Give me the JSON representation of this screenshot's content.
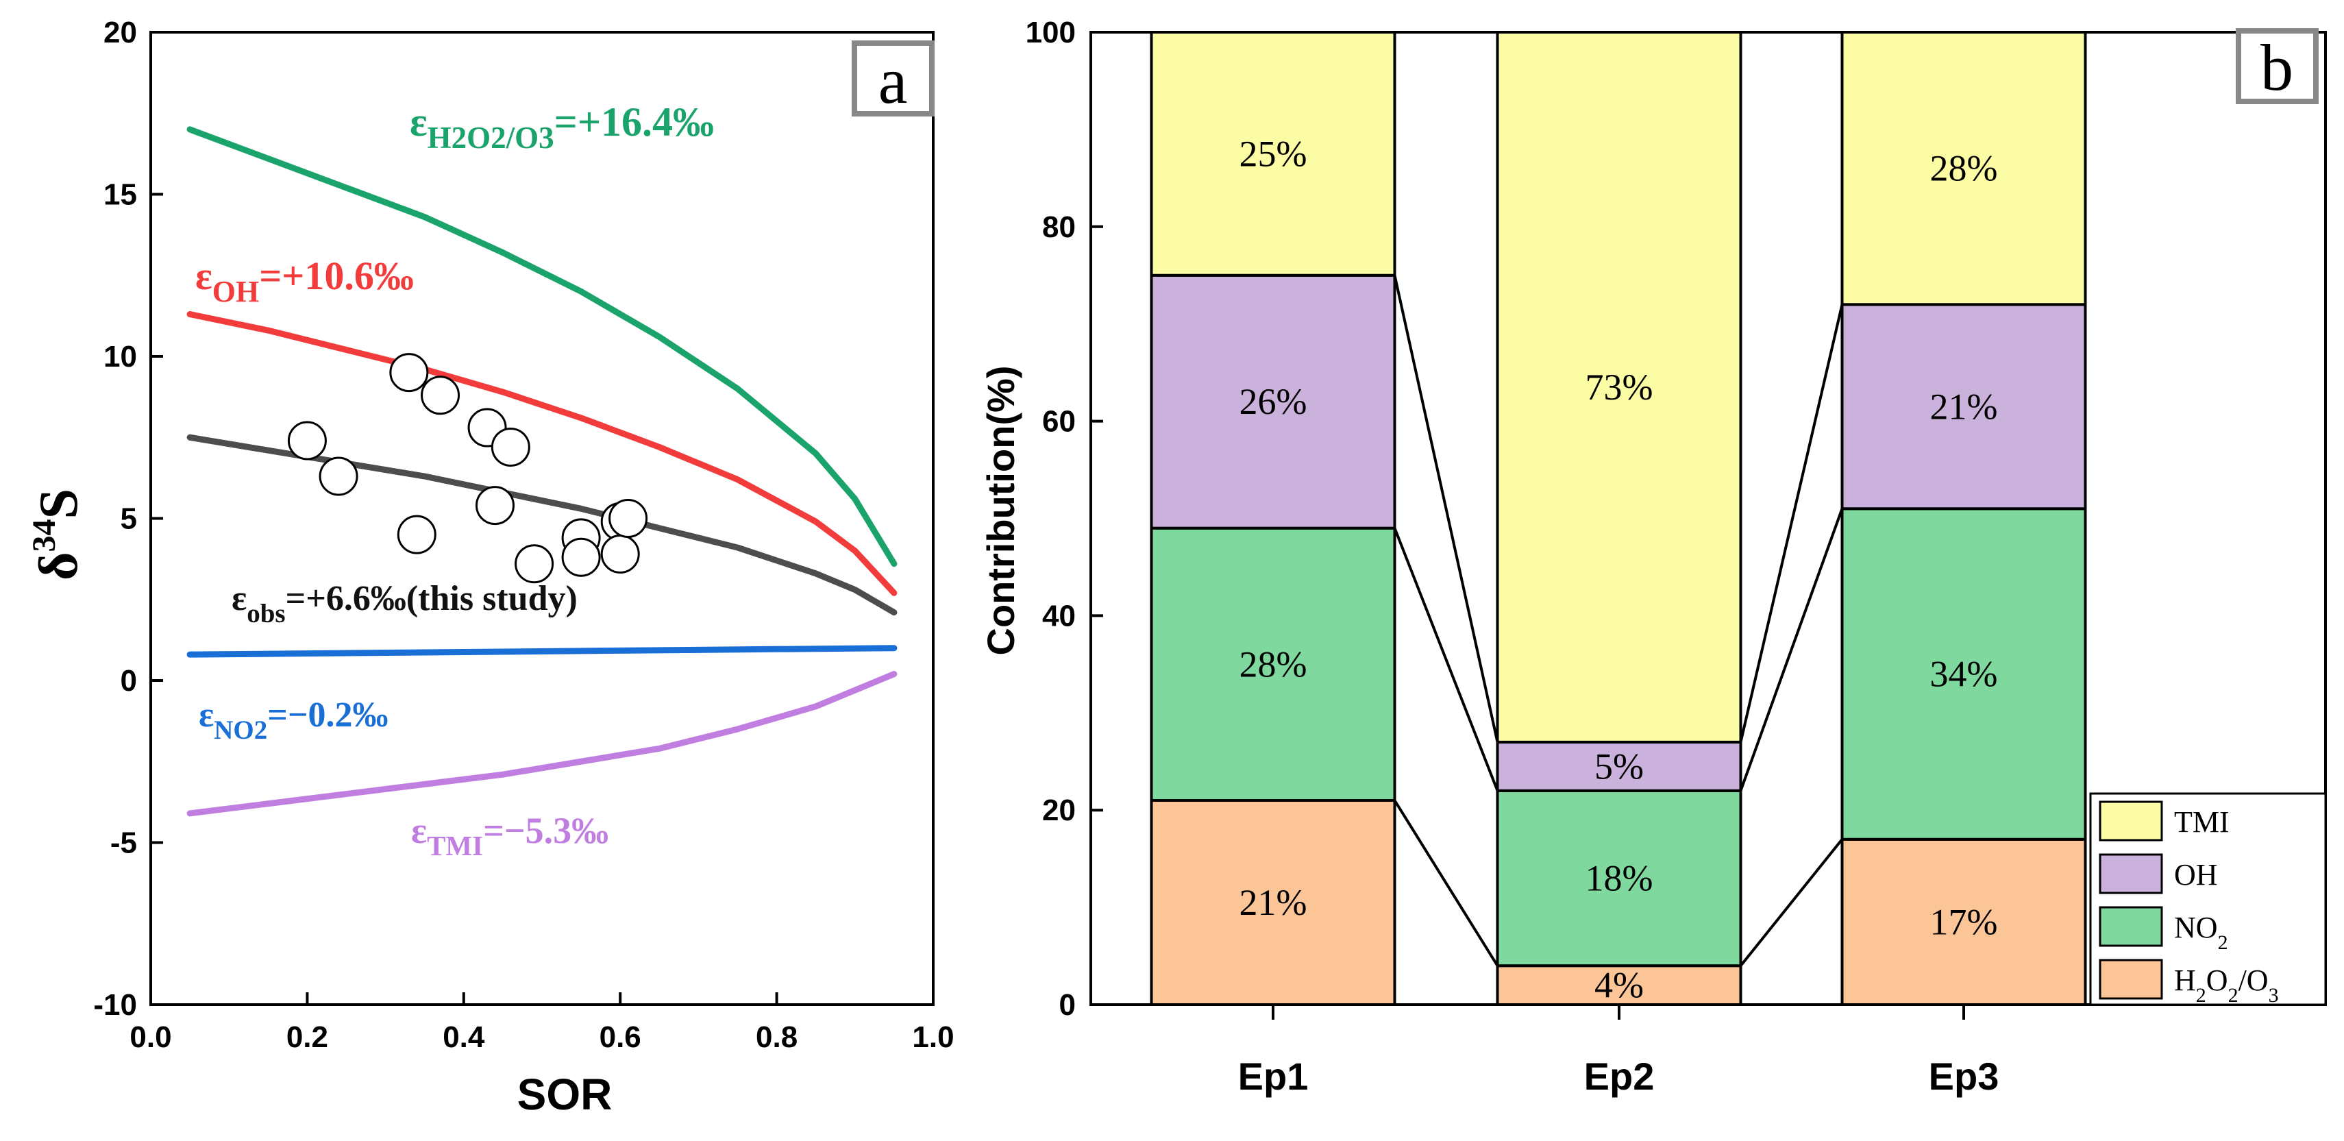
{
  "chart_data": [
    {
      "type": "line",
      "panel": "a",
      "panel_letter": "a",
      "xlabel": "SOR",
      "ylabel": "δ",
      "ylabel_sup": "34",
      "ylabel_tail": "S",
      "xlim": [
        0.0,
        1.0
      ],
      "ylim": [
        -10,
        20
      ],
      "xticks": [
        "0.0",
        "0.2",
        "0.4",
        "0.6",
        "0.8",
        "1.0"
      ],
      "xtick_values": [
        0.0,
        0.2,
        0.4,
        0.6,
        0.8,
        1.0
      ],
      "yticks": [
        "-10",
        "-5",
        "0",
        "5",
        "10",
        "15",
        "20"
      ],
      "ytick_values": [
        -10,
        -5,
        0,
        5,
        10,
        15,
        20
      ],
      "series": [
        {
          "name": "H2O2/O3",
          "color": "#1aa36b",
          "x": [
            0.05,
            0.15,
            0.25,
            0.35,
            0.45,
            0.55,
            0.65,
            0.75,
            0.85,
            0.9,
            0.95
          ],
          "y": [
            17.0,
            16.1,
            15.2,
            14.3,
            13.2,
            12.0,
            10.6,
            9.0,
            7.0,
            5.6,
            3.6
          ],
          "label_main": "ε",
          "label_sub": "H2O2/O3",
          "label_value": "=+16.4‰"
        },
        {
          "name": "OH",
          "color": "#f23c3c",
          "x": [
            0.05,
            0.15,
            0.25,
            0.35,
            0.45,
            0.55,
            0.65,
            0.75,
            0.85,
            0.9,
            0.95
          ],
          "y": [
            11.3,
            10.8,
            10.2,
            9.6,
            8.9,
            8.1,
            7.2,
            6.2,
            4.9,
            4.0,
            2.7
          ],
          "label_main": "ε",
          "label_sub": "OH",
          "label_value": "=+10.6‰"
        },
        {
          "name": "obs",
          "color": "#4d4d4d",
          "x": [
            0.05,
            0.15,
            0.25,
            0.35,
            0.45,
            0.55,
            0.65,
            0.75,
            0.85,
            0.9,
            0.95
          ],
          "y": [
            7.5,
            7.1,
            6.7,
            6.3,
            5.8,
            5.3,
            4.7,
            4.1,
            3.3,
            2.8,
            2.1
          ],
          "label_main": "ε",
          "label_sub": "obs",
          "label_value": "=+6.6‰(this study)"
        },
        {
          "name": "NO2",
          "color": "#1a6fd6",
          "x": [
            0.05,
            0.95
          ],
          "y": [
            0.8,
            1.0
          ],
          "label_main": "ε",
          "label_sub": "NO2",
          "label_value": "=−0.2‰"
        },
        {
          "name": "TMI",
          "color": "#c07fe0",
          "x": [
            0.05,
            0.15,
            0.25,
            0.35,
            0.45,
            0.55,
            0.65,
            0.75,
            0.85,
            0.9,
            0.95
          ],
          "y": [
            -4.1,
            -3.8,
            -3.5,
            -3.2,
            -2.9,
            -2.5,
            -2.1,
            -1.5,
            -0.8,
            -0.3,
            0.2
          ],
          "label_main": "ε",
          "label_sub": "TMI",
          "label_value": "=−5.3‰"
        }
      ],
      "scatter": {
        "name": "observations",
        "x": [
          0.2,
          0.24,
          0.33,
          0.34,
          0.37,
          0.43,
          0.44,
          0.46,
          0.49,
          0.55,
          0.55,
          0.6,
          0.6,
          0.61
        ],
        "y": [
          7.4,
          6.3,
          9.5,
          4.5,
          8.8,
          7.8,
          5.4,
          7.2,
          3.6,
          4.4,
          3.8,
          4.9,
          3.9,
          5.0
        ]
      }
    },
    {
      "type": "bar",
      "stacked": true,
      "panel": "b",
      "panel_letter": "b",
      "ylabel": "Contribution(%)",
      "ylim": [
        0,
        100
      ],
      "yticks": [
        "0",
        "20",
        "40",
        "60",
        "80",
        "100"
      ],
      "ytick_values": [
        0,
        20,
        40,
        60,
        80,
        100
      ],
      "categories": [
        "Ep1",
        "Ep2",
        "Ep3"
      ],
      "series": [
        {
          "name": "H2O2/O3",
          "color": "#fbc598",
          "values": [
            21,
            4,
            17
          ],
          "labels": [
            "21%",
            "4%",
            "17%"
          ]
        },
        {
          "name": "NO2",
          "color": "#7fd99e",
          "values": [
            28,
            18,
            34
          ],
          "labels": [
            "28%",
            "18%",
            "34%"
          ]
        },
        {
          "name": "OH",
          "color": "#cbb2dc",
          "values": [
            26,
            5,
            21
          ],
          "labels": [
            "26%",
            "5%",
            "21%"
          ]
        },
        {
          "name": "TMI",
          "color": "#fcfca4",
          "values": [
            25,
            73,
            28
          ],
          "labels": [
            "25%",
            "73%",
            "28%"
          ]
        }
      ],
      "legend": {
        "position": "bottom-right",
        "items": [
          {
            "text": "TMI",
            "sub": "",
            "color": "#fcfca4"
          },
          {
            "text": "OH",
            "sub": "",
            "color": "#cbb2dc"
          },
          {
            "text": "NO",
            "sub": "2",
            "color": "#7fd99e"
          },
          {
            "text": "H",
            "sub": "2",
            "text2": "O",
            "sub2": "2",
            "text3": "/O",
            "sub3": "3",
            "color": "#fbc598"
          }
        ]
      }
    }
  ]
}
